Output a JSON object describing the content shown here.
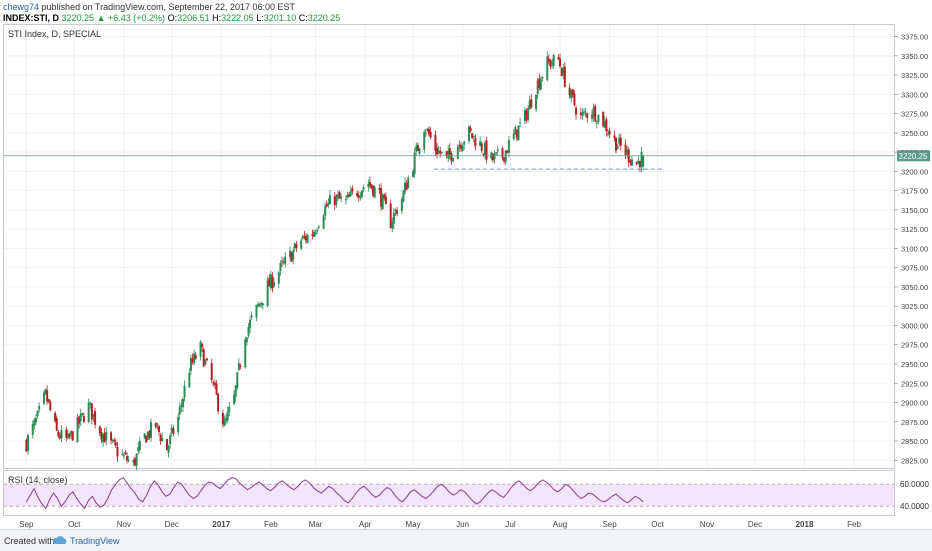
{
  "header": {
    "author": "chewg74",
    "published_text": "published on TradingView.com, September 22, 2017 06:00 EST",
    "symbol_line": "INDEX:STI, D",
    "last": "3220.25",
    "change": "▲ +6.43 (+0.2%)",
    "o_label": "O:",
    "o_value": "3206.51",
    "h_label": "H:",
    "h_value": "3222.05",
    "l_label": "L:",
    "l_value": "3201.10",
    "c_label": "C:",
    "c_value": "3220.25"
  },
  "main_pane": {
    "legend": "STI Index, D, SPECIAL",
    "price_tag": "3220.25"
  },
  "rsi_pane": {
    "legend": "RSI (14, close)",
    "levels": [
      "60.0000",
      "40.0000"
    ]
  },
  "footer": {
    "created_with": "Created with",
    "brand": "TradingView",
    "brand_icon": "tradingview-cloud-icon"
  },
  "colors": {
    "up": "#2e8b57",
    "down": "#b22222",
    "rsi_line": "#8b3a8b",
    "rsi_band": "#f3e5fb",
    "support_line": "#7a8fd6",
    "price_tag_bg": "#5b9a8b"
  },
  "chart_data": [
    {
      "type": "candlestick",
      "title": "STI Index, D, SPECIAL",
      "x_tick_labels": [
        "Sep",
        "Oct",
        "Nov",
        "Dec",
        "2017",
        "Feb",
        "Mar",
        "Apr",
        "May",
        "Jun",
        "Jul",
        "Aug",
        "Sep",
        "Oct",
        "Nov",
        "Dec",
        "2018",
        "Feb"
      ],
      "y_tick_labels": [
        "3375.00",
        "3350.00",
        "3325.00",
        "3300.00",
        "3275.00",
        "3250.00",
        "3225.00",
        "3200.00",
        "3175.00",
        "3150.00",
        "3125.00",
        "3100.00",
        "3075.00",
        "3050.00",
        "3025.00",
        "3000.00",
        "2975.00",
        "2950.00",
        "2925.00",
        "2900.00",
        "2875.00",
        "2850.00",
        "2825.00"
      ],
      "ylim": [
        2815,
        3390
      ],
      "grid": true,
      "last_close": 3220.25,
      "support_level": 3203,
      "series_path": [
        [
          "2016-09-01",
          2848
        ],
        [
          "2016-09-08",
          2880
        ],
        [
          "2016-09-13",
          2910
        ],
        [
          "2016-09-20",
          2860
        ],
        [
          "2016-09-27",
          2850
        ],
        [
          "2016-10-03",
          2870
        ],
        [
          "2016-10-10",
          2895
        ],
        [
          "2016-10-17",
          2865
        ],
        [
          "2016-10-24",
          2845
        ],
        [
          "2016-10-31",
          2830
        ],
        [
          "2016-11-07",
          2820
        ],
        [
          "2016-11-14",
          2855
        ],
        [
          "2016-11-21",
          2870
        ],
        [
          "2016-11-28",
          2840
        ],
        [
          "2016-12-05",
          2880
        ],
        [
          "2016-12-12",
          2945
        ],
        [
          "2016-12-19",
          2970
        ],
        [
          "2016-12-27",
          2920
        ],
        [
          "2017-01-03",
          2870
        ],
        [
          "2017-01-09",
          2905
        ],
        [
          "2017-01-16",
          2990
        ],
        [
          "2017-01-23",
          3020
        ],
        [
          "2017-01-30",
          3050
        ],
        [
          "2017-02-06",
          3070
        ],
        [
          "2017-02-13",
          3090
        ],
        [
          "2017-02-20",
          3110
        ],
        [
          "2017-02-27",
          3120
        ],
        [
          "2017-03-06",
          3150
        ],
        [
          "2017-03-13",
          3165
        ],
        [
          "2017-03-20",
          3160
        ],
        [
          "2017-03-27",
          3175
        ],
        [
          "2017-04-03",
          3185
        ],
        [
          "2017-04-10",
          3170
        ],
        [
          "2017-04-17",
          3135
        ],
        [
          "2017-04-24",
          3165
        ],
        [
          "2017-05-01",
          3210
        ],
        [
          "2017-05-08",
          3260
        ],
        [
          "2017-05-15",
          3230
        ],
        [
          "2017-05-22",
          3215
        ],
        [
          "2017-05-29",
          3235
        ],
        [
          "2017-06-05",
          3250
        ],
        [
          "2017-06-12",
          3235
        ],
        [
          "2017-06-19",
          3215
        ],
        [
          "2017-06-26",
          3220
        ],
        [
          "2017-07-03",
          3245
        ],
        [
          "2017-07-10",
          3270
        ],
        [
          "2017-07-17",
          3310
        ],
        [
          "2017-07-24",
          3340
        ],
        [
          "2017-07-31",
          3345
        ],
        [
          "2017-08-07",
          3300
        ],
        [
          "2017-08-14",
          3270
        ],
        [
          "2017-08-21",
          3280
        ],
        [
          "2017-08-28",
          3265
        ],
        [
          "2017-09-04",
          3240
        ],
        [
          "2017-09-11",
          3225
        ],
        [
          "2017-09-18",
          3210
        ],
        [
          "2017-09-22",
          3220.25
        ]
      ]
    },
    {
      "type": "line",
      "title": "RSI (14, close)",
      "y_tick_labels": [
        "60.0000",
        "40.0000"
      ],
      "ylim": [
        32,
        72
      ],
      "band": [
        40,
        60
      ],
      "values": [
        44,
        50,
        56,
        48,
        42,
        38,
        46,
        52,
        47,
        40,
        44,
        50,
        53,
        47,
        42,
        38,
        45,
        49,
        43,
        39,
        41,
        47,
        55,
        60,
        64,
        66,
        61,
        56,
        52,
        46,
        44,
        50,
        58,
        63,
        59,
        53,
        49,
        51,
        57,
        62,
        60,
        55,
        50,
        47,
        49,
        54,
        59,
        62,
        61,
        58,
        56,
        60,
        64,
        66,
        65,
        61,
        58,
        55,
        57,
        60,
        62,
        59,
        56,
        54,
        57,
        61,
        63,
        60,
        57,
        55,
        58,
        62,
        64,
        61,
        57,
        54,
        52,
        55,
        58,
        56,
        52,
        49,
        45,
        43,
        47,
        52,
        56,
        58,
        55,
        51,
        48,
        50,
        54,
        57,
        55,
        50,
        46,
        44,
        48,
        53,
        55,
        52,
        49,
        47,
        50,
        54,
        58,
        60,
        57,
        53,
        50,
        52,
        55,
        53,
        49,
        45,
        42,
        44,
        48,
        52,
        55,
        53,
        50,
        48,
        52,
        57,
        61,
        63,
        60,
        56,
        54,
        57,
        61,
        64,
        62,
        59,
        55,
        53,
        56,
        60,
        58,
        54,
        50,
        47,
        49,
        52,
        51,
        48,
        45,
        44,
        46,
        49,
        51,
        48,
        45,
        43,
        46,
        49,
        47,
        44
      ]
    }
  ]
}
